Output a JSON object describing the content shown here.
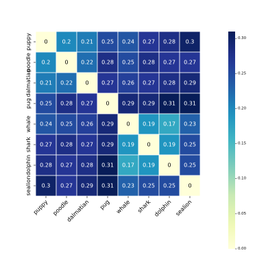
{
  "chart_data": {
    "type": "heatmap",
    "title": "",
    "xlabel": "",
    "ylabel": "",
    "x_labels": [
      "puppy",
      "poodle",
      "dalmatian",
      "pug",
      "whale",
      "shark",
      "dolphin",
      "sealion"
    ],
    "y_labels": [
      "puppy",
      "poodle",
      "dalmatian",
      "pug",
      "whale",
      "shark",
      "dolphin",
      "sealion"
    ],
    "values": [
      [
        0,
        0.2,
        0.21,
        0.25,
        0.24,
        0.27,
        0.28,
        0.3
      ],
      [
        0.2,
        0,
        0.22,
        0.28,
        0.25,
        0.28,
        0.27,
        0.27
      ],
      [
        0.21,
        0.22,
        0,
        0.27,
        0.26,
        0.27,
        0.28,
        0.29
      ],
      [
        0.25,
        0.28,
        0.27,
        0,
        0.29,
        0.29,
        0.31,
        0.31
      ],
      [
        0.24,
        0.25,
        0.26,
        0.29,
        0,
        0.19,
        0.17,
        0.23
      ],
      [
        0.27,
        0.28,
        0.27,
        0.29,
        0.19,
        0,
        0.19,
        0.25
      ],
      [
        0.28,
        0.27,
        0.28,
        0.31,
        0.17,
        0.19,
        0,
        0.25
      ],
      [
        0.3,
        0.27,
        0.29,
        0.31,
        0.23,
        0.25,
        0.25,
        0
      ]
    ],
    "annotated": true,
    "colormap": "YlGnBu",
    "vmin": 0,
    "vmax": 0.31,
    "colorbar_ticks": [
      "0.00",
      "0.05",
      "0.10",
      "0.15",
      "0.20",
      "0.25",
      "0.30"
    ],
    "colorbar_tick_values": [
      0,
      0.05,
      0.1,
      0.15,
      0.2,
      0.25,
      0.3
    ],
    "grid": true,
    "grid_color": "#ffffff",
    "annotation_text_color_dark": "#000000",
    "annotation_text_color_light": "#ffffff"
  }
}
